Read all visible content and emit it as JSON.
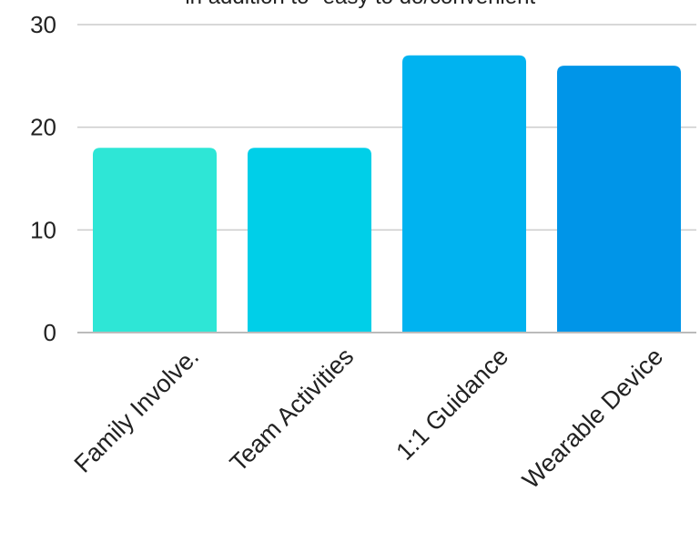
{
  "chart_data": {
    "type": "bar",
    "title": "in addition to \"easy to do/convenient\"",
    "categories": [
      "Family Involve.",
      "Team Activities",
      "1:1 Guidance",
      "Wearable Device"
    ],
    "values": [
      18,
      18,
      27,
      26
    ],
    "colors": [
      "#2EE6D6",
      "#00CFE8",
      "#00B3F0",
      "#0095E8"
    ],
    "ylim": [
      0,
      30
    ],
    "yticks": [
      "0",
      "10",
      "20",
      "30"
    ],
    "grid": true,
    "legend": "none",
    "xlabel": "",
    "ylabel": ""
  }
}
